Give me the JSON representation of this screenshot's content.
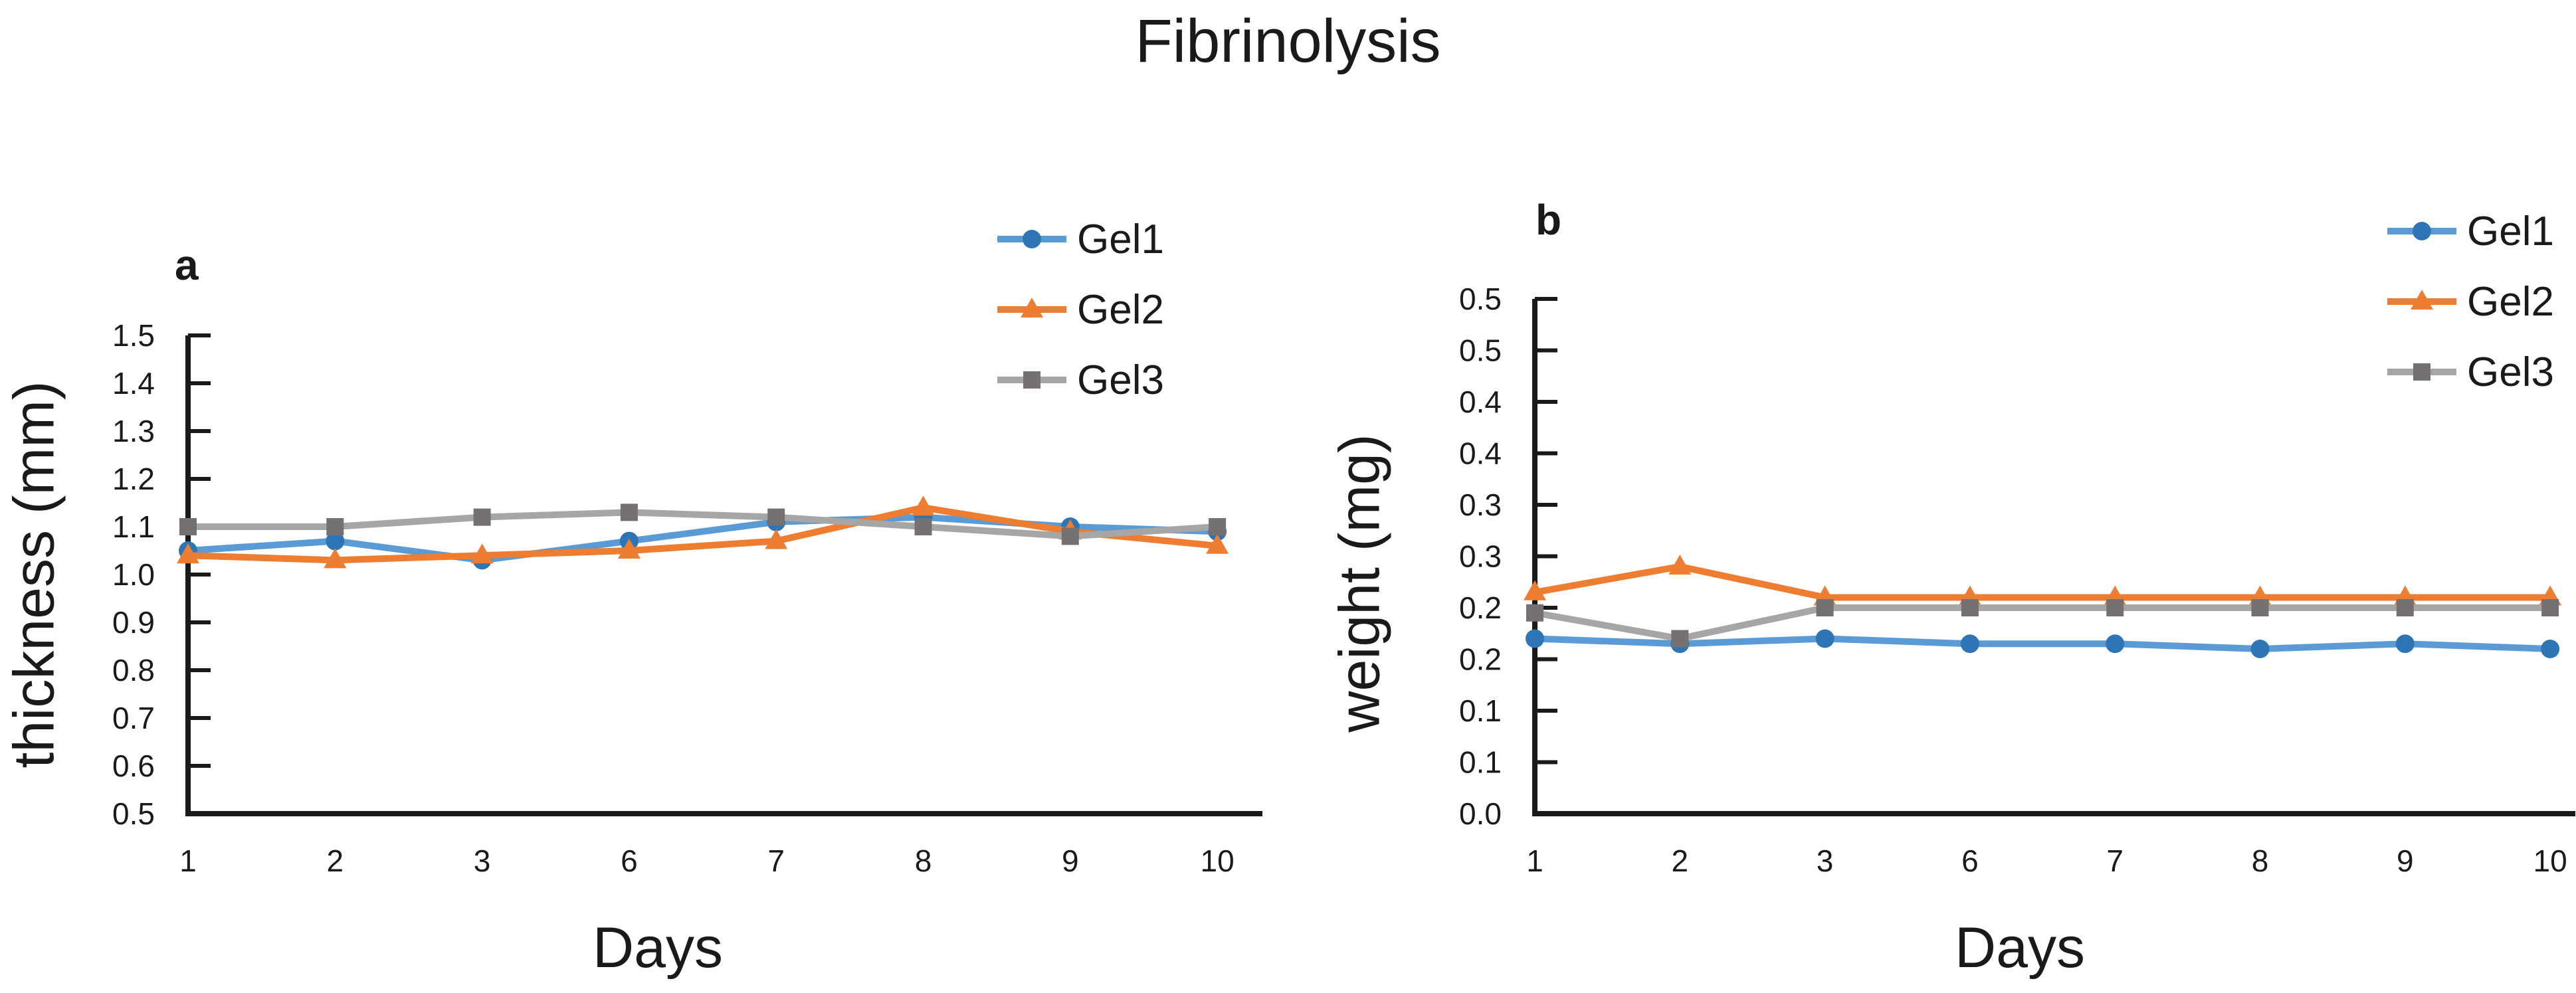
{
  "title": "Fibrinolysis",
  "colors": {
    "axis": "#1a1a1a",
    "text": "#1a1a1a",
    "gel1_line": "#5B9BD5",
    "gel1_marker": "#2E75B6",
    "gel2_line": "#ED7D31",
    "gel2_marker": "#ED7D31",
    "gel3_line": "#A6A6A6",
    "gel3_marker": "#757171"
  },
  "chart_data": [
    {
      "type": "line",
      "panel_label": "a",
      "xlabel": "Days",
      "ylabel": "thickness (mm)",
      "categories": [
        "1",
        "2",
        "3",
        "6",
        "7",
        "8",
        "9",
        "10"
      ],
      "ylim": [
        0.5,
        1.5
      ],
      "ytick_step": 0.1,
      "ytick_labels": [
        "1.5",
        "1.4",
        "1.3",
        "1.2",
        "1.1",
        "1.0",
        "0.9",
        "0.8",
        "0.7",
        "0.6",
        "0.5"
      ],
      "grid": false,
      "legend_position": "upper right",
      "series": [
        {
          "name": "Gel1",
          "marker": "circle",
          "line_color": "#5B9BD5",
          "marker_color": "#2E75B6",
          "values": [
            1.05,
            1.07,
            1.03,
            1.07,
            1.11,
            1.12,
            1.1,
            1.09
          ]
        },
        {
          "name": "Gel2",
          "marker": "triangle",
          "line_color": "#ED7D31",
          "marker_color": "#ED7D31",
          "values": [
            1.04,
            1.03,
            1.04,
            1.05,
            1.07,
            1.14,
            1.09,
            1.06
          ]
        },
        {
          "name": "Gel3",
          "marker": "square",
          "line_color": "#A6A6A6",
          "marker_color": "#757171",
          "values": [
            1.1,
            1.1,
            1.12,
            1.13,
            1.12,
            1.1,
            1.08,
            1.1
          ]
        }
      ]
    },
    {
      "type": "line",
      "panel_label": "b",
      "xlabel": "Days",
      "ylabel": "weight (mg)",
      "categories": [
        "1",
        "2",
        "3",
        "6",
        "7",
        "8",
        "9",
        "10"
      ],
      "ylim": [
        0.0,
        0.5
      ],
      "ytick_step": 0.05,
      "ytick_labels": [
        "0.5",
        "0.5",
        "0.4",
        "0.4",
        "0.3",
        "0.3",
        "0.2",
        "0.2",
        "0.1",
        "0.1",
        "0.0"
      ],
      "grid": false,
      "legend_position": "upper right",
      "series": [
        {
          "name": "Gel1",
          "marker": "circle",
          "line_color": "#5B9BD5",
          "marker_color": "#2E75B6",
          "values": [
            0.17,
            0.165,
            0.17,
            0.165,
            0.165,
            0.16,
            0.165,
            0.16
          ]
        },
        {
          "name": "Gel2",
          "marker": "triangle",
          "line_color": "#ED7D31",
          "marker_color": "#ED7D31",
          "values": [
            0.215,
            0.24,
            0.21,
            0.21,
            0.21,
            0.21,
            0.21,
            0.21
          ]
        },
        {
          "name": "Gel3",
          "marker": "square",
          "line_color": "#A6A6A6",
          "marker_color": "#757171",
          "values": [
            0.195,
            0.17,
            0.2,
            0.2,
            0.2,
            0.2,
            0.2,
            0.2
          ]
        }
      ]
    }
  ]
}
